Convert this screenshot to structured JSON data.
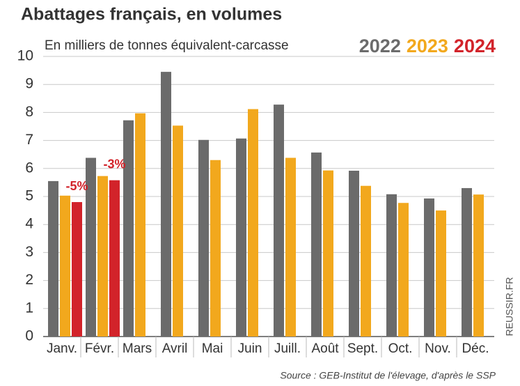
{
  "chart_data": {
    "type": "bar",
    "title": "Abattages français, en volumes",
    "subtitle": "En milliers de tonnes équivalent-carcasse",
    "source": "Source : GEB-Institut de l'élevage, d'après le SSP",
    "watermark": "REUSSIR.FR",
    "categories": [
      "Janv.",
      "Févr.",
      "Mars",
      "Avril",
      "Mai",
      "Juin",
      "Juill.",
      "Août",
      "Sept.",
      "Oct.",
      "Nov.",
      "Déc."
    ],
    "series": [
      {
        "name": "2022",
        "color": "#6b6b6b",
        "values": [
          5.55,
          6.38,
          7.72,
          9.45,
          7.02,
          7.07,
          8.28,
          6.57,
          5.92,
          5.08,
          4.93,
          5.3
        ]
      },
      {
        "name": "2023",
        "color": "#f2a81d",
        "values": [
          5.03,
          5.73,
          7.97,
          7.53,
          6.3,
          8.12,
          6.38,
          5.93,
          5.38,
          4.77,
          4.5,
          5.07
        ]
      },
      {
        "name": "2024",
        "color": "#d2232a",
        "values": [
          4.8,
          5.58,
          null,
          null,
          null,
          null,
          null,
          null,
          null,
          null,
          null,
          null
        ]
      }
    ],
    "annotations": [
      "-5%",
      "-3%"
    ],
    "ylim": [
      0,
      10
    ],
    "yticks": [
      0,
      1,
      2,
      3,
      4,
      5,
      6,
      7,
      8,
      9,
      10
    ],
    "grid": true
  }
}
